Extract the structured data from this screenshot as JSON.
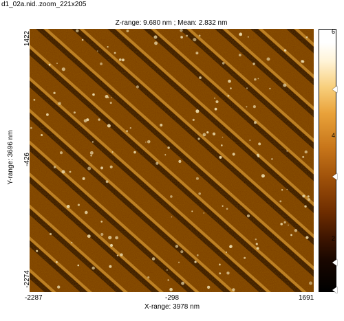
{
  "file": {
    "title": "d1_02a.nid..zoom_221x205"
  },
  "image_info": {
    "z_text": "Z-range:  9.680 nm ; Mean:  2.832 nm"
  },
  "y_axis": {
    "label": "Y-range:  3696 nm",
    "ticks": [
      "1422",
      "-426",
      "-2274"
    ]
  },
  "x_axis": {
    "label": "X-range:  3978 nm",
    "ticks": [
      "-2287",
      "-298",
      "1691"
    ]
  },
  "colorbar": {
    "ticks": [
      "6",
      "4",
      "2"
    ],
    "colors": [
      "#ffffff",
      "#f8cf7c",
      "#c8761a",
      "#6d2c00",
      "#000000"
    ]
  },
  "image_colors": {
    "background": "#7a3d00",
    "dark_trench": "#1e0800",
    "bright_ridge": "#e0a040",
    "particle": "#fff6d8"
  }
}
